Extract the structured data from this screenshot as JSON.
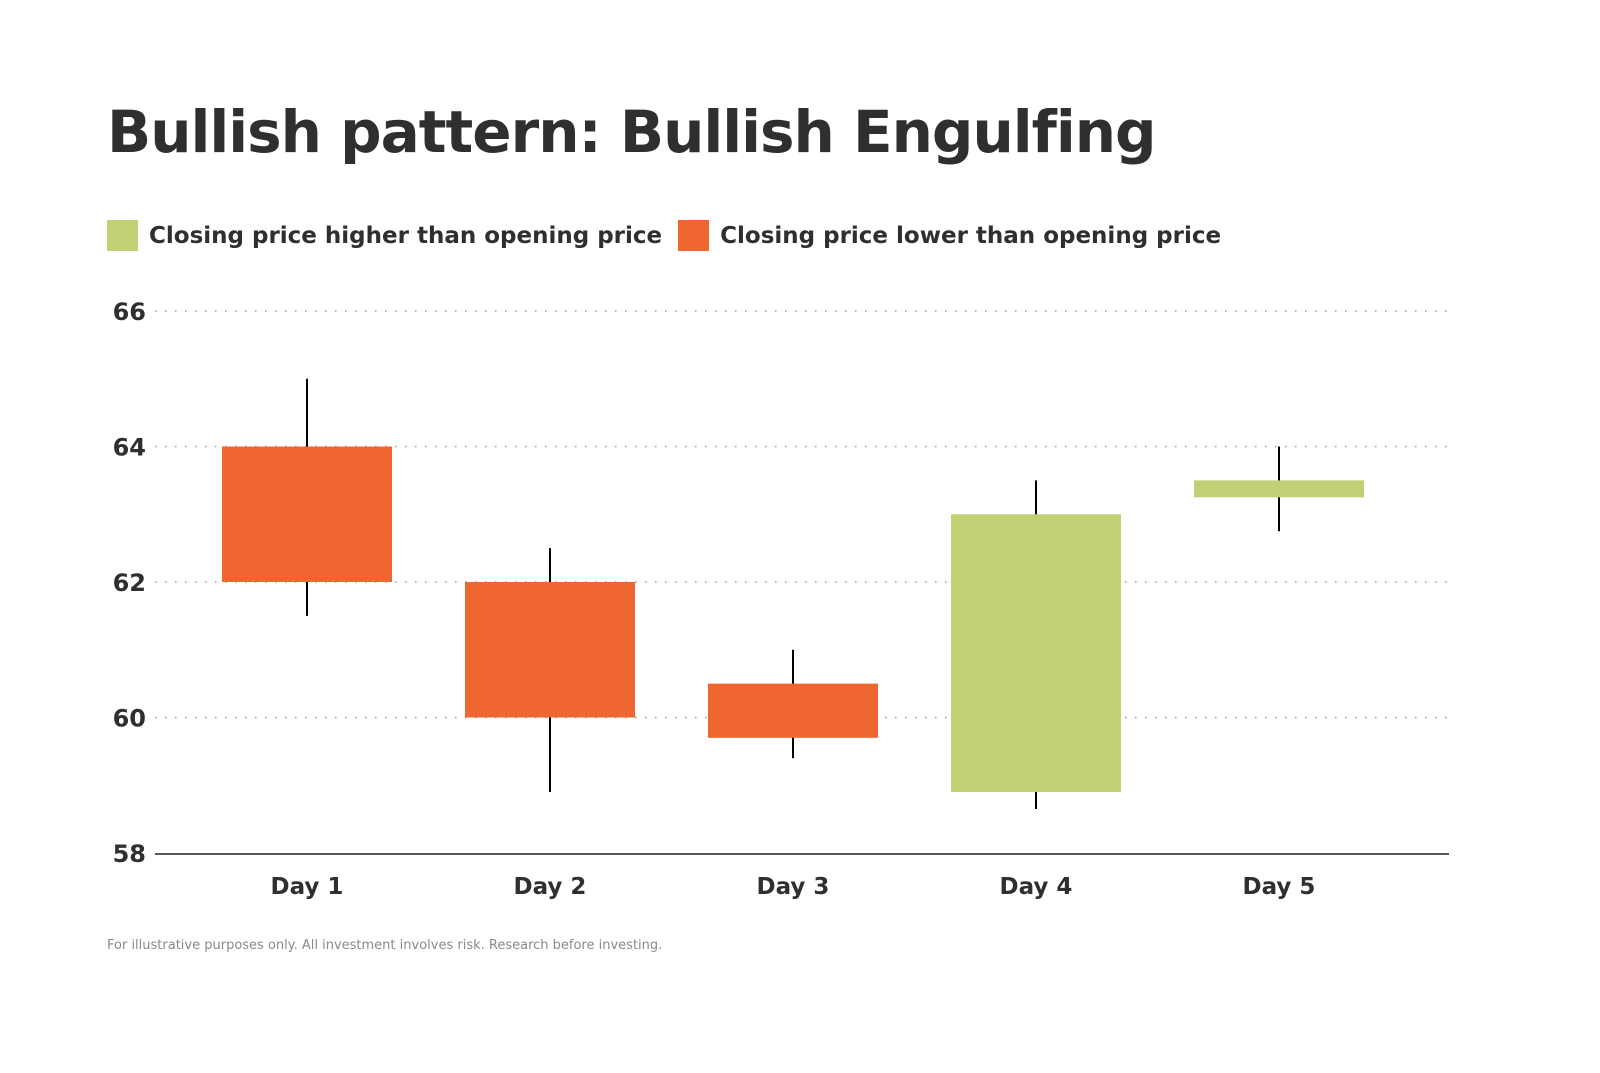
{
  "chart_data": {
    "type": "candlestick",
    "title": "Bullish pattern: Bullish Engulfing",
    "legend": [
      {
        "label": "Closing price higher than opening price",
        "color": "#bfd174"
      },
      {
        "label": "Closing price lower than opening price",
        "color": "#f06630"
      }
    ],
    "legend_placement": "top-left",
    "categories": [
      "Day 1",
      "Day 2",
      "Day 3",
      "Day 4",
      "Day 5"
    ],
    "candles": [
      {
        "open": 64,
        "close": 62,
        "high": 65,
        "low": 61.5
      },
      {
        "open": 62,
        "close": 60,
        "high": 62.5,
        "low": 58.9
      },
      {
        "open": 60.5,
        "close": 59.7,
        "high": 61,
        "low": 59.4
      },
      {
        "open": 58.9,
        "close": 63,
        "high": 63.5,
        "low": 58.65
      },
      {
        "open": 63.25,
        "close": 63.5,
        "high": 64,
        "low": 62.75
      }
    ],
    "ylim": [
      58,
      66
    ],
    "yticks": [
      58,
      60,
      62,
      64,
      66
    ],
    "grid": "horizontal dotted",
    "up_color": "#bfd174",
    "down_color": "#f06630"
  },
  "footnote": "For illustrative purposes only. All investment involves risk. Research before investing."
}
